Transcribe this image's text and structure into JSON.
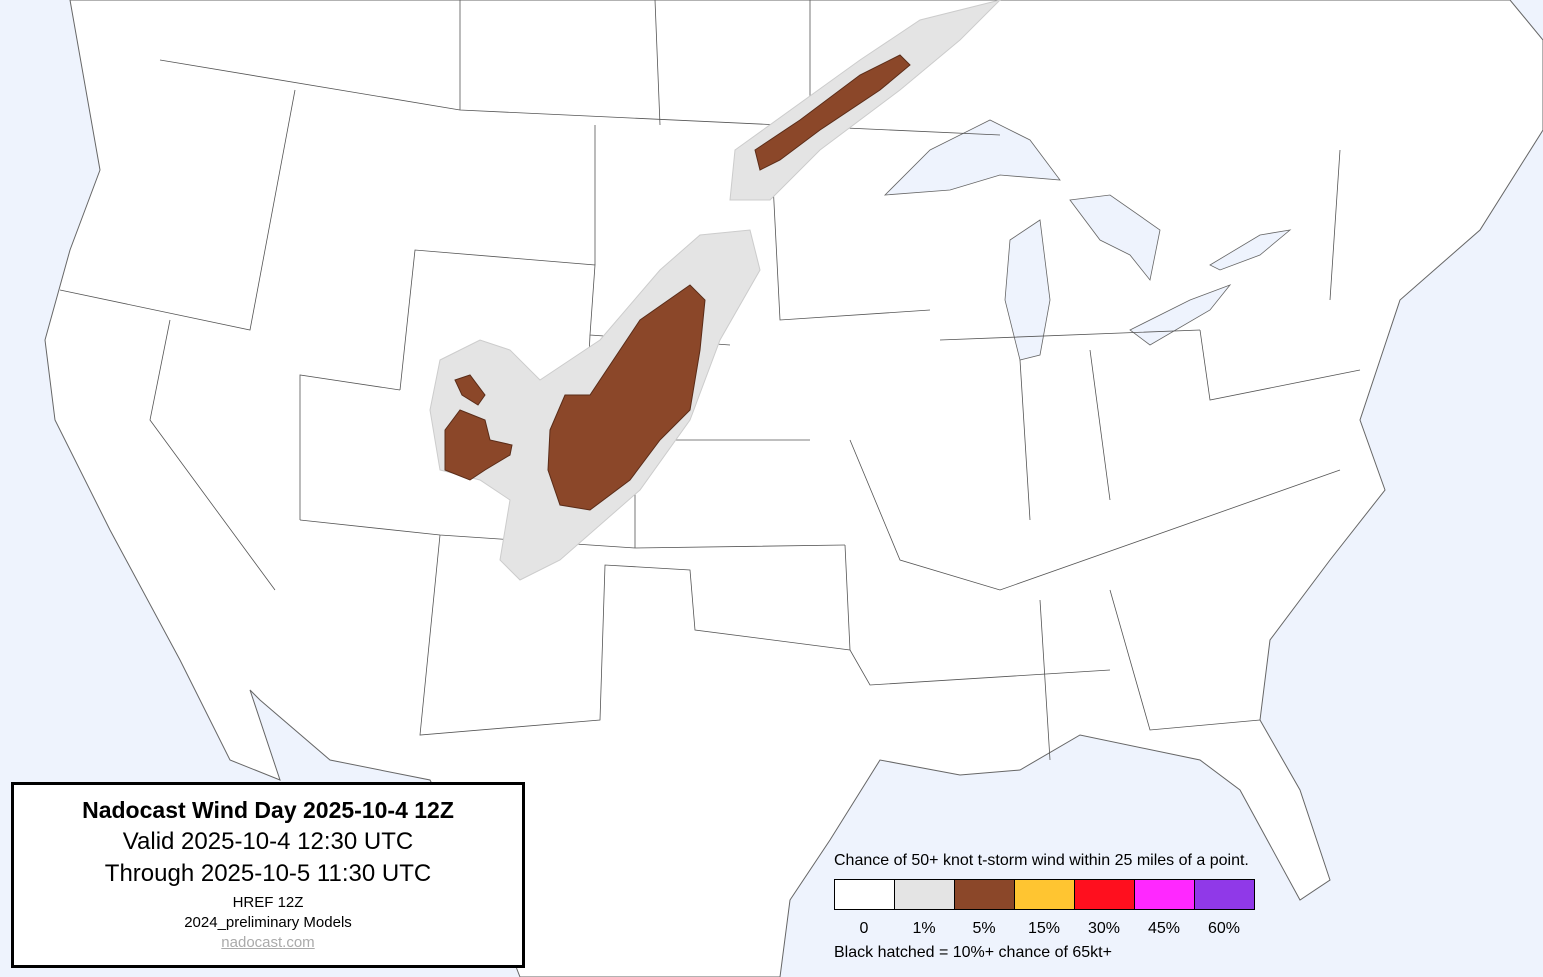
{
  "title_box": {
    "title": "Nadocast Wind Day 2025-10-4 12Z",
    "valid": "Valid 2025-10-4 12:30 UTC",
    "through": "Through 2025-10-5 11:30 UTC",
    "model": "HREF 12Z",
    "models_version": "2024_preliminary Models",
    "link": "nadocast.com"
  },
  "legend": {
    "title": "Chance of 50+ knot t-storm wind within 25 miles of a point.",
    "bins": [
      {
        "label": "0",
        "color": "#ffffff"
      },
      {
        "label": "1%",
        "color": "#e4e4e4"
      },
      {
        "label": "5%",
        "color": "#8b4729"
      },
      {
        "label": "15%",
        "color": "#ffc531"
      },
      {
        "label": "30%",
        "color": "#ff0f1e"
      },
      {
        "label": "45%",
        "color": "#ff28ff"
      },
      {
        "label": "60%",
        "color": "#9039e8"
      }
    ],
    "note": "Black hatched = 10%+ chance of 65kt+"
  },
  "colors": {
    "water": "#eef3fd",
    "land": "#ffffff",
    "borders": "#555555"
  }
}
